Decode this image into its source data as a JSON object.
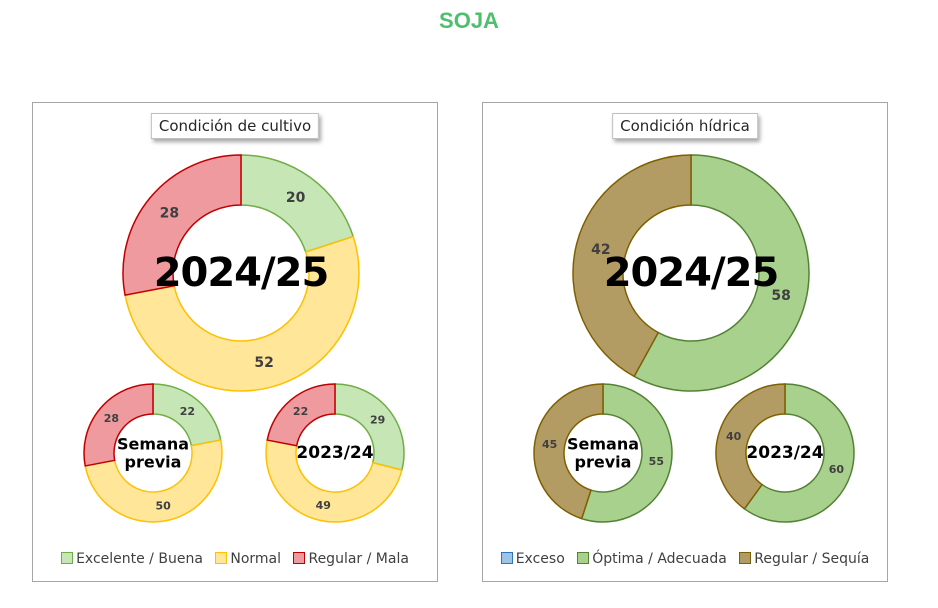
{
  "page": {
    "title": "SOJA",
    "title_color": "#4dbf6e"
  },
  "chart_data": [
    {
      "type": "pie",
      "title": "Condición de cultivo",
      "legend": [
        {
          "label": "Excelente / Buena",
          "fill": "#c6e7b5",
          "stroke": "#70ad47"
        },
        {
          "label": "Normal",
          "fill": "#ffe699",
          "stroke": "#ffc000"
        },
        {
          "label": "Regular / Mala",
          "fill": "#ef9a9f",
          "stroke": "#c00000"
        }
      ],
      "legend_position": "bottom",
      "donuts": [
        {
          "center_label": [
            "2024/25"
          ],
          "values": [
            20,
            52,
            28
          ]
        },
        {
          "center_label": [
            "Semana",
            "previa"
          ],
          "values": [
            22,
            50,
            28
          ]
        },
        {
          "center_label": [
            "2023/24"
          ],
          "values": [
            29,
            49,
            22
          ]
        }
      ]
    },
    {
      "type": "pie",
      "title": "Condición hídrica",
      "legend": [
        {
          "label": "Exceso",
          "fill": "#9dc3e6",
          "stroke": "#2e75b6"
        },
        {
          "label": "Óptima / Adecuada",
          "fill": "#a9d18e",
          "stroke": "#548235"
        },
        {
          "label": "Regular / Sequía",
          "fill": "#b39b64",
          "stroke": "#7f6000"
        }
      ],
      "legend_position": "bottom",
      "donuts": [
        {
          "center_label": [
            "2024/25"
          ],
          "values": [
            0,
            58,
            42
          ]
        },
        {
          "center_label": [
            "Semana",
            "previa"
          ],
          "values": [
            0,
            55,
            45
          ]
        },
        {
          "center_label": [
            "2023/24"
          ],
          "values": [
            0,
            60,
            40
          ]
        }
      ]
    }
  ]
}
